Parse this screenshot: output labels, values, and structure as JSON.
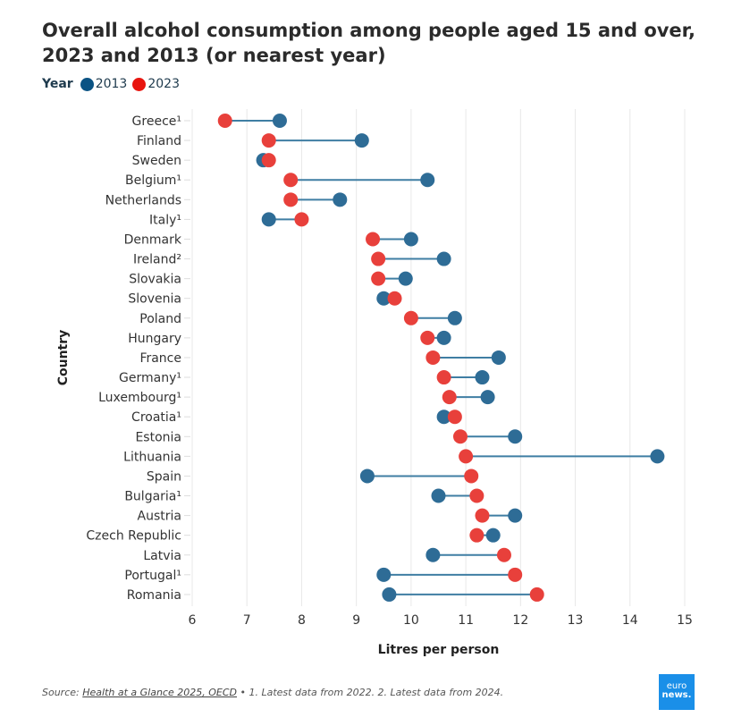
{
  "chart_data": {
    "type": "dumbbell",
    "title": "Overall alcohol consumption among people aged 15 and over, 2023 and 2013 (or nearest year)",
    "legend_title": "Year",
    "legend_placement": "top-left",
    "xlabel": "Litres per person",
    "ylabel": "Country",
    "xlim": [
      6,
      15
    ],
    "xticks": [
      6,
      7,
      8,
      9,
      10,
      11,
      12,
      13,
      14,
      15
    ],
    "grid": "vertical",
    "colors": {
      "2013": "#2e6c96",
      "2023": "#e8403b",
      "connector": "#3f7ea3",
      "legend_2013": "#0b5384",
      "legend_2023": "#e8150f"
    },
    "series": [
      {
        "name": "2013",
        "values": [
          7.6,
          9.1,
          7.3,
          10.3,
          8.7,
          7.4,
          10.0,
          10.6,
          9.9,
          9.5,
          10.8,
          10.6,
          11.6,
          11.3,
          11.4,
          10.6,
          11.9,
          14.5,
          9.2,
          10.5,
          11.9,
          11.5,
          10.4,
          9.5,
          9.6
        ]
      },
      {
        "name": "2023",
        "values": [
          6.6,
          7.4,
          7.4,
          7.8,
          7.8,
          8.0,
          9.3,
          9.4,
          9.4,
          9.7,
          10.0,
          10.3,
          10.4,
          10.6,
          10.7,
          10.8,
          10.9,
          11.0,
          11.1,
          11.2,
          11.3,
          11.2,
          11.7,
          11.9,
          12.3
        ]
      }
    ],
    "categories": [
      "Greece¹",
      "Finland",
      "Sweden",
      "Belgium¹",
      "Netherlands",
      "Italy¹",
      "Denmark",
      "Ireland²",
      "Slovakia",
      "Slovenia",
      "Poland",
      "Hungary",
      "France",
      "Germany¹",
      "Luxembourg¹",
      "Croatia¹",
      "Estonia",
      "Lithuania",
      "Spain",
      "Bulgaria¹",
      "Austria",
      "Czech Republic",
      "Latvia",
      "Portugal¹",
      "Romania"
    ]
  },
  "footer": {
    "source_prefix": "Source: ",
    "source_link": "Health at a Glance 2025, OECD",
    "notes": " • 1. Latest data from 2022. 2. Latest data from 2024."
  },
  "logo": {
    "line1": "euro",
    "line2": "news."
  }
}
